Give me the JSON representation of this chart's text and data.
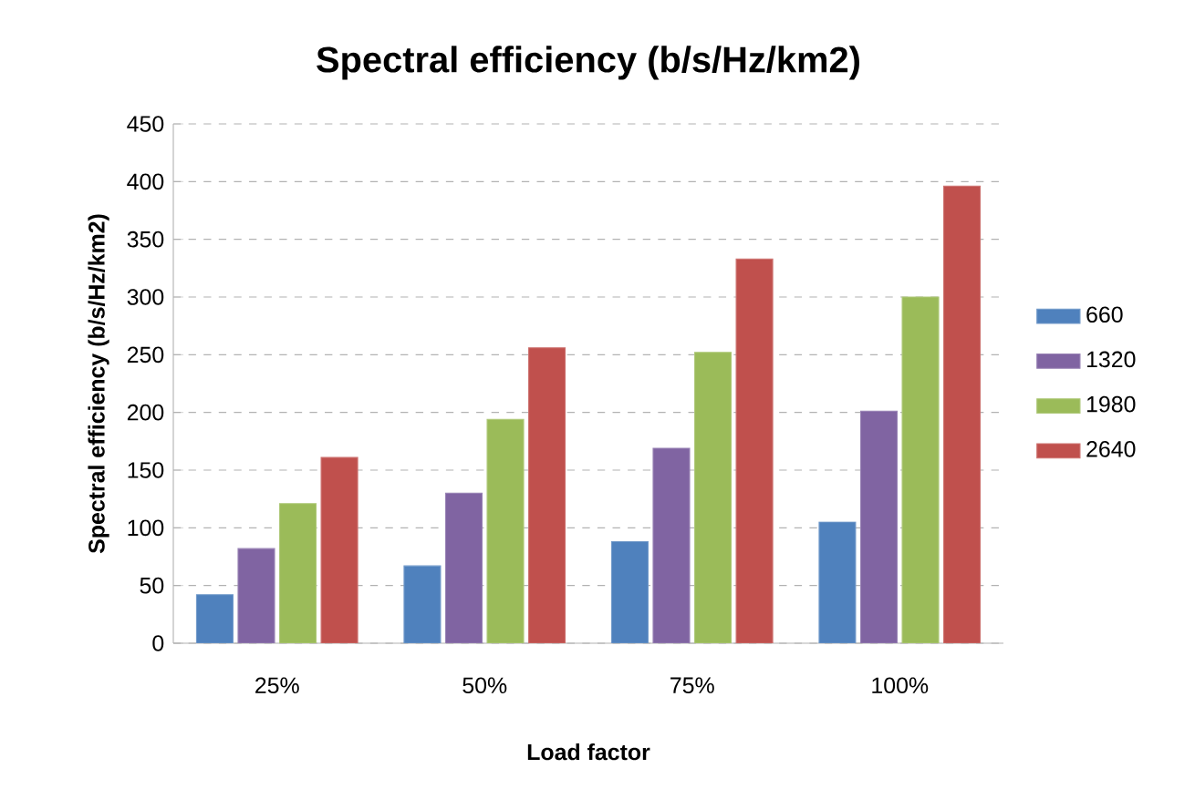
{
  "chart_data": {
    "type": "bar",
    "title": "Spectral efficiency (b/s/Hz/km2)",
    "xlabel": "Load factor",
    "ylabel": "Spectral efficiency (b/s/Hz/km2)",
    "categories": [
      "25%",
      "50%",
      "75%",
      "100%"
    ],
    "series": [
      {
        "name": "660",
        "color": "#4f81bd",
        "values": [
          42,
          67,
          88,
          105
        ]
      },
      {
        "name": "1320",
        "color": "#8064a2",
        "values": [
          82,
          130,
          169,
          201
        ]
      },
      {
        "name": "1980",
        "color": "#9bbb59",
        "values": [
          121,
          194,
          252,
          300
        ]
      },
      {
        "name": "2640",
        "color": "#c0504d",
        "values": [
          161,
          256,
          333,
          396
        ]
      }
    ],
    "ylim": [
      0,
      450
    ],
    "yticks": [
      0,
      50,
      100,
      150,
      200,
      250,
      300,
      350,
      400,
      450
    ],
    "grid": "y",
    "legend": "right"
  }
}
